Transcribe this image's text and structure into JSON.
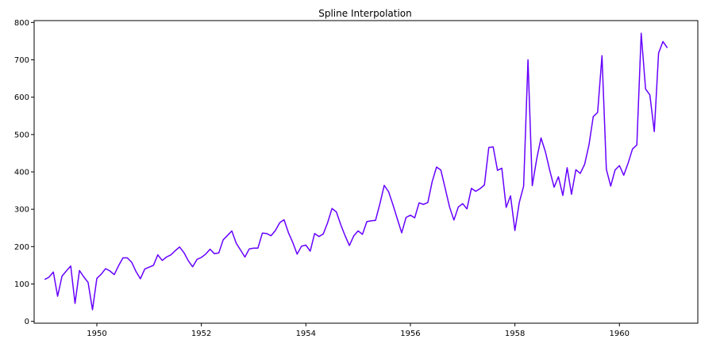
{
  "chart_data": {
    "type": "line",
    "title": "Spline Interpolation",
    "xlabel": "",
    "ylabel": "",
    "xlim": [
      1948.8,
      1961.5
    ],
    "ylim": [
      -5,
      805
    ],
    "xticks": [
      1950,
      1952,
      1954,
      1956,
      1958,
      1960
    ],
    "xtick_labels": [
      "1950",
      "1952",
      "1954",
      "1956",
      "1958",
      "1960"
    ],
    "yticks": [
      0,
      100,
      200,
      300,
      400,
      500,
      600,
      700,
      800
    ],
    "ytick_labels": [
      "0",
      "100",
      "200",
      "300",
      "400",
      "500",
      "600",
      "700",
      "800"
    ],
    "grid": false,
    "legend": "none",
    "colors": {
      "line": "#6600ff",
      "axes": "#000000",
      "background": "#ffffff"
    },
    "series": [
      {
        "x": [
          1949.0,
          1949.083,
          1949.167,
          1949.25,
          1949.333,
          1949.417,
          1949.5,
          1949.583,
          1949.667,
          1949.75,
          1949.833,
          1949.917,
          1950.0,
          1950.083,
          1950.167,
          1950.25,
          1950.333,
          1950.417,
          1950.5,
          1950.583,
          1950.667,
          1950.75,
          1950.833,
          1950.917,
          1951.0,
          1951.083,
          1951.167,
          1951.25,
          1951.333,
          1951.417,
          1951.5,
          1951.583,
          1951.667,
          1951.75,
          1951.833,
          1951.917,
          1952.0,
          1952.083,
          1952.167,
          1952.25,
          1952.333,
          1952.417,
          1952.5,
          1952.583,
          1952.667,
          1952.75,
          1952.833,
          1952.917,
          1953.0,
          1953.083,
          1953.167,
          1953.25,
          1953.333,
          1953.417,
          1953.5,
          1953.583,
          1953.667,
          1953.75,
          1953.833,
          1953.917,
          1954.0,
          1954.083,
          1954.167,
          1954.25,
          1954.333,
          1954.417,
          1954.5,
          1954.583,
          1954.667,
          1954.75,
          1954.833,
          1954.917,
          1955.0,
          1955.083,
          1955.167,
          1955.25,
          1955.333,
          1955.417,
          1955.5,
          1955.583,
          1955.667,
          1955.75,
          1955.833,
          1955.917,
          1956.0,
          1956.083,
          1956.167,
          1956.25,
          1956.333,
          1956.417,
          1956.5,
          1956.583,
          1956.667,
          1956.75,
          1956.833,
          1956.917,
          1957.0,
          1957.083,
          1957.167,
          1957.25,
          1957.333,
          1957.417,
          1957.5,
          1957.583,
          1957.667,
          1957.75,
          1957.833,
          1957.917,
          1958.0,
          1958.083,
          1958.167,
          1958.25,
          1958.333,
          1958.417,
          1958.5,
          1958.583,
          1958.667,
          1958.75,
          1958.833,
          1958.917,
          1959.0,
          1959.083,
          1959.167,
          1959.25,
          1959.333,
          1959.417,
          1959.5,
          1959.583,
          1959.667,
          1959.75,
          1959.833,
          1959.917,
          1960.0,
          1960.083,
          1960.167,
          1960.25,
          1960.333,
          1960.417,
          1960.5,
          1960.583,
          1960.667,
          1960.75,
          1960.833,
          1960.917
        ],
        "values": [
          112,
          118,
          132,
          67,
          121,
          135,
          148,
          48,
          136,
          119,
          104,
          31,
          115,
          126,
          141,
          135,
          125,
          149,
          170,
          170,
          158,
          133,
          114,
          140,
          145,
          150,
          178,
          163,
          172,
          178,
          189,
          199,
          184,
          162,
          146,
          166,
          171,
          180,
          193,
          181,
          183,
          218,
          230,
          242,
          209,
          191,
          172,
          194,
          196,
          196,
          236,
          235,
          229,
          243,
          264,
          272,
          237,
          211,
          180,
          201,
          204,
          188,
          235,
          227,
          234,
          264,
          302,
          293,
          259,
          229,
          203,
          229,
          242,
          233,
          267,
          269,
          270,
          315,
          364,
          347,
          312,
          274,
          237,
          278,
          284,
          277,
          317,
          313,
          318,
          374,
          413,
          405,
          355,
          306,
          271,
          306,
          315,
          301,
          356,
          348,
          355,
          365,
          465,
          467,
          404,
          410,
          305,
          336,
          243,
          318,
          362,
          700,
          363,
          435,
          491,
          454,
          404,
          359,
          387,
          337,
          411,
          340,
          406,
          396,
          420,
          472,
          548,
          559,
          711,
          407,
          362,
          405,
          417,
          391,
          424,
          461,
          472,
          771,
          622,
          606,
          508,
          718,
          749,
          732
        ]
      }
    ]
  }
}
